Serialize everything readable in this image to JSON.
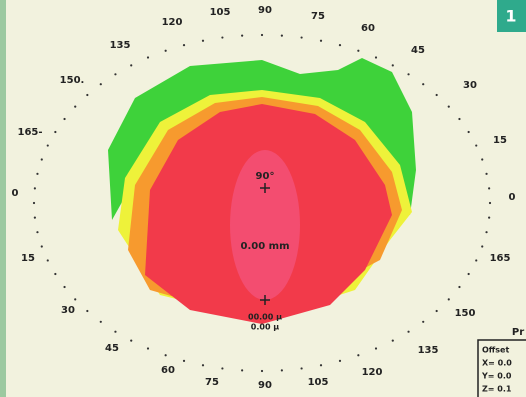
{
  "badge": "1",
  "angle_labels": [
    "120",
    "105",
    "90",
    "75",
    "60",
    "45",
    "30",
    "15",
    "0",
    "165",
    "150",
    "135",
    "120",
    "105",
    "90",
    "75",
    "60",
    "45",
    "30",
    "15",
    "0",
    "165-",
    "150.",
    "135"
  ],
  "center_labels": {
    "axis": "90°",
    "distance": "0.00 mm",
    "elevation": "00.00 µ",
    "elevation2": "0.00 µ"
  },
  "info_box": {
    "title": "Pr",
    "lines": [
      "Offset",
      "X= 0.0",
      "Y= 0.0",
      "Z= 0.1"
    ]
  }
}
